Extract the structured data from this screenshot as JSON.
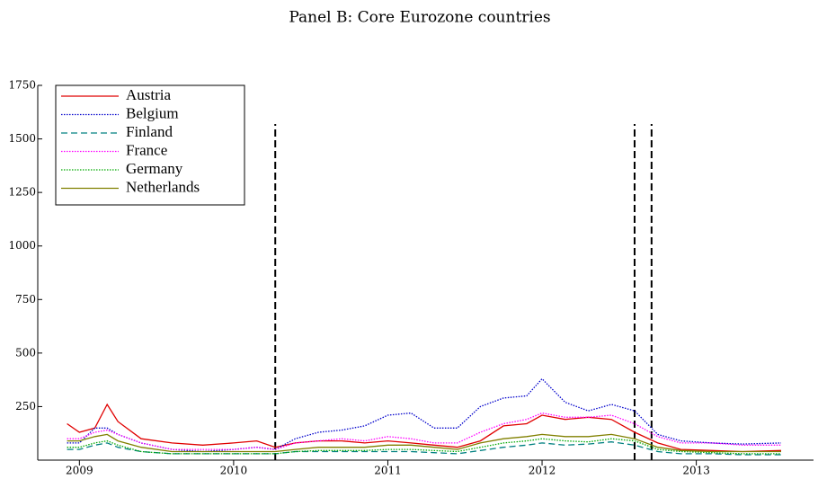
{
  "chart_data": {
    "type": "line",
    "title": "Panel B: Core Eurozone countries",
    "x": [
      2008.92,
      2009.0,
      2009.1,
      2009.18,
      2009.25,
      2009.4,
      2009.6,
      2009.8,
      2010.0,
      2010.15,
      2010.27,
      2010.4,
      2010.55,
      2010.7,
      2010.85,
      2011.0,
      2011.15,
      2011.3,
      2011.45,
      2011.6,
      2011.75,
      2011.9,
      2012.0,
      2012.15,
      2012.3,
      2012.45,
      2012.6,
      2012.75,
      2012.9,
      2013.1,
      2013.3,
      2013.55
    ],
    "series": [
      {
        "name": "Austria",
        "color": "#e00000",
        "style": "solid",
        "values": [
          170,
          130,
          150,
          260,
          180,
          100,
          80,
          70,
          80,
          90,
          60,
          80,
          90,
          90,
          80,
          90,
          80,
          70,
          60,
          90,
          160,
          170,
          210,
          190,
          200,
          190,
          130,
          80,
          50,
          45,
          40,
          45
        ]
      },
      {
        "name": "Belgium",
        "color": "#0000cc",
        "style": "dotted",
        "values": [
          80,
          80,
          150,
          150,
          120,
          80,
          50,
          40,
          50,
          60,
          50,
          100,
          130,
          140,
          160,
          210,
          220,
          150,
          150,
          250,
          290,
          300,
          380,
          270,
          230,
          260,
          230,
          120,
          90,
          80,
          75,
          80
        ]
      },
      {
        "name": "Finland",
        "color": "#008080",
        "style": "dashed",
        "values": [
          50,
          50,
          70,
          80,
          60,
          40,
          30,
          30,
          30,
          30,
          30,
          40,
          40,
          40,
          40,
          40,
          40,
          35,
          30,
          45,
          60,
          70,
          80,
          70,
          75,
          85,
          70,
          40,
          30,
          30,
          25,
          25
        ]
      },
      {
        "name": "France",
        "color": "#ff00ff",
        "style": "dotted",
        "values": [
          100,
          100,
          130,
          140,
          120,
          80,
          50,
          50,
          50,
          60,
          50,
          80,
          90,
          100,
          90,
          110,
          100,
          80,
          80,
          130,
          170,
          190,
          220,
          200,
          200,
          210,
          170,
          110,
          80,
          80,
          70,
          70
        ]
      },
      {
        "name": "Germany",
        "color": "#00aa00",
        "style": "dotted",
        "values": [
          60,
          60,
          80,
          90,
          70,
          40,
          30,
          30,
          30,
          30,
          30,
          40,
          45,
          45,
          45,
          50,
          50,
          45,
          40,
          60,
          80,
          90,
          100,
          90,
          85,
          100,
          90,
          50,
          40,
          35,
          30,
          30
        ]
      },
      {
        "name": "Netherlands",
        "color": "#808000",
        "style": "solid",
        "values": [
          90,
          90,
          110,
          120,
          90,
          60,
          40,
          40,
          40,
          40,
          40,
          50,
          60,
          60,
          60,
          70,
          70,
          60,
          50,
          80,
          100,
          110,
          120,
          110,
          110,
          120,
          100,
          60,
          45,
          40,
          40,
          40
        ]
      }
    ],
    "vlines": [
      2010.27,
      2012.6,
      2012.71
    ],
    "xlim": [
      2008.73,
      2013.76
    ],
    "xticks": [
      2009,
      2010,
      2011,
      2012,
      2013
    ],
    "ylim": [
      0,
      1750
    ],
    "yticks": [
      250,
      500,
      750,
      1000,
      1250,
      1500,
      1750
    ],
    "legend": "upper-left"
  }
}
